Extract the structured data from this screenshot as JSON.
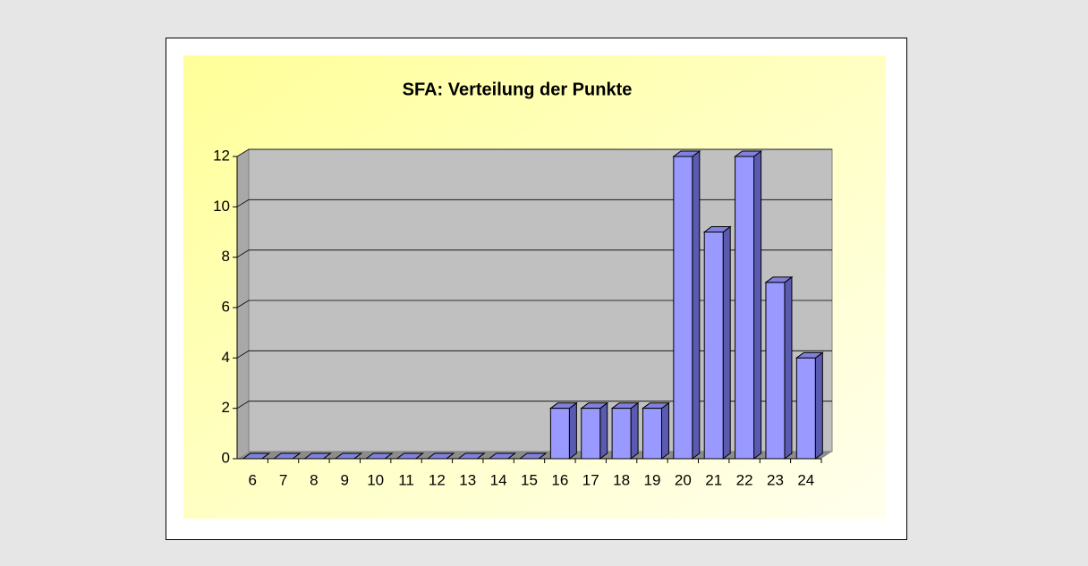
{
  "chart_data": {
    "type": "bar3d",
    "title": "SFA: Verteilung der Punkte",
    "categories": [
      "6",
      "7",
      "8",
      "9",
      "10",
      "11",
      "12",
      "13",
      "14",
      "15",
      "16",
      "17",
      "18",
      "19",
      "20",
      "21",
      "22",
      "23",
      "24"
    ],
    "values": [
      0,
      0,
      0,
      0,
      0,
      0,
      0,
      0,
      0,
      0,
      2,
      2,
      2,
      2,
      12,
      9,
      12,
      7,
      4
    ],
    "color": "#9999ff",
    "ylim": [
      0,
      12
    ],
    "yticks": [
      0,
      2,
      4,
      6,
      8,
      10,
      12
    ],
    "grid": true
  }
}
